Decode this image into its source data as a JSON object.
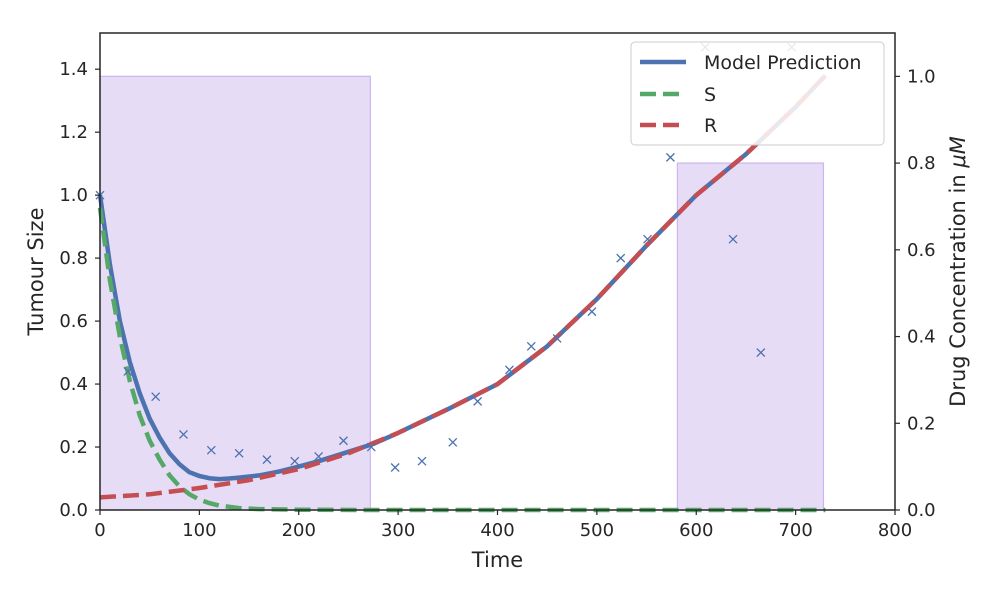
{
  "chart_data": {
    "type": "line",
    "xlabel": "Time",
    "ylabel_left": "Tumour Size",
    "ylabel_right_prefix": "Drug Concentration in ",
    "ylabel_right_unit": "μM",
    "xlim": [
      0,
      800
    ],
    "ylim_left": [
      0,
      1.515
    ],
    "ylim_right": [
      0,
      1.1
    ],
    "xticks": [
      0,
      100,
      200,
      300,
      400,
      500,
      600,
      700,
      800
    ],
    "yticks_left": [
      0.0,
      0.2,
      0.4,
      0.6,
      0.8,
      1.0,
      1.2,
      1.4
    ],
    "yticks_right": [
      0.0,
      0.2,
      0.4,
      0.6,
      0.8,
      1.0
    ],
    "legend_position": "top-right",
    "colors": {
      "model": "#4c72b0",
      "S": "#55a868",
      "R": "#c44e52",
      "drug_fill": "#e3d6f5",
      "drug_edge": "#cbb5f0",
      "axis": "#262626"
    },
    "drug_concentration": [
      {
        "start": 0,
        "end": 272,
        "value": 1.0
      },
      {
        "start": 581,
        "end": 728,
        "value": 0.8
      }
    ],
    "series": [
      {
        "name": "Model Prediction",
        "style": "solid",
        "x": [
          0,
          10,
          20,
          30,
          40,
          50,
          60,
          70,
          80,
          90,
          100,
          110,
          120,
          130,
          140,
          160,
          180,
          200,
          220,
          250,
          275,
          300,
          350,
          400,
          450,
          500,
          550,
          600,
          650,
          700,
          730
        ],
        "y": [
          1.0,
          0.78,
          0.6,
          0.47,
          0.37,
          0.29,
          0.23,
          0.18,
          0.145,
          0.12,
          0.108,
          0.101,
          0.098,
          0.1,
          0.103,
          0.11,
          0.122,
          0.138,
          0.155,
          0.185,
          0.21,
          0.245,
          0.32,
          0.4,
          0.52,
          0.67,
          0.84,
          1.0,
          1.13,
          1.28,
          1.38
        ]
      },
      {
        "name": "S",
        "style": "dashed",
        "x": [
          0,
          10,
          20,
          30,
          40,
          50,
          60,
          70,
          80,
          90,
          100,
          110,
          120,
          140,
          160,
          200,
          260,
          400,
          600,
          730
        ],
        "y": [
          0.96,
          0.73,
          0.55,
          0.41,
          0.3,
          0.22,
          0.16,
          0.11,
          0.075,
          0.05,
          0.033,
          0.022,
          0.014,
          0.006,
          0.003,
          0.001,
          0.0,
          0.0,
          0.0,
          0.0
        ]
      },
      {
        "name": "R",
        "style": "dashed",
        "x": [
          0,
          50,
          100,
          150,
          200,
          250,
          300,
          350,
          400,
          450,
          500,
          550,
          600,
          650,
          700,
          730
        ],
        "y": [
          0.04,
          0.05,
          0.07,
          0.095,
          0.13,
          0.18,
          0.245,
          0.32,
          0.4,
          0.52,
          0.67,
          0.84,
          1.0,
          1.13,
          1.28,
          1.38
        ]
      }
    ],
    "observations": {
      "x": [
        0,
        28,
        56,
        84,
        112,
        140,
        168,
        196,
        220,
        245,
        273,
        297,
        324,
        355,
        380,
        412,
        434,
        460,
        495,
        524,
        551,
        574,
        609,
        637,
        665,
        696
      ],
      "y": [
        1.0,
        0.44,
        0.36,
        0.24,
        0.19,
        0.18,
        0.16,
        0.155,
        0.17,
        0.22,
        0.2,
        0.135,
        0.155,
        0.215,
        0.345,
        0.445,
        0.52,
        0.545,
        0.63,
        0.8,
        0.86,
        1.12,
        1.47,
        0.86,
        0.5,
        1.47
      ]
    }
  }
}
